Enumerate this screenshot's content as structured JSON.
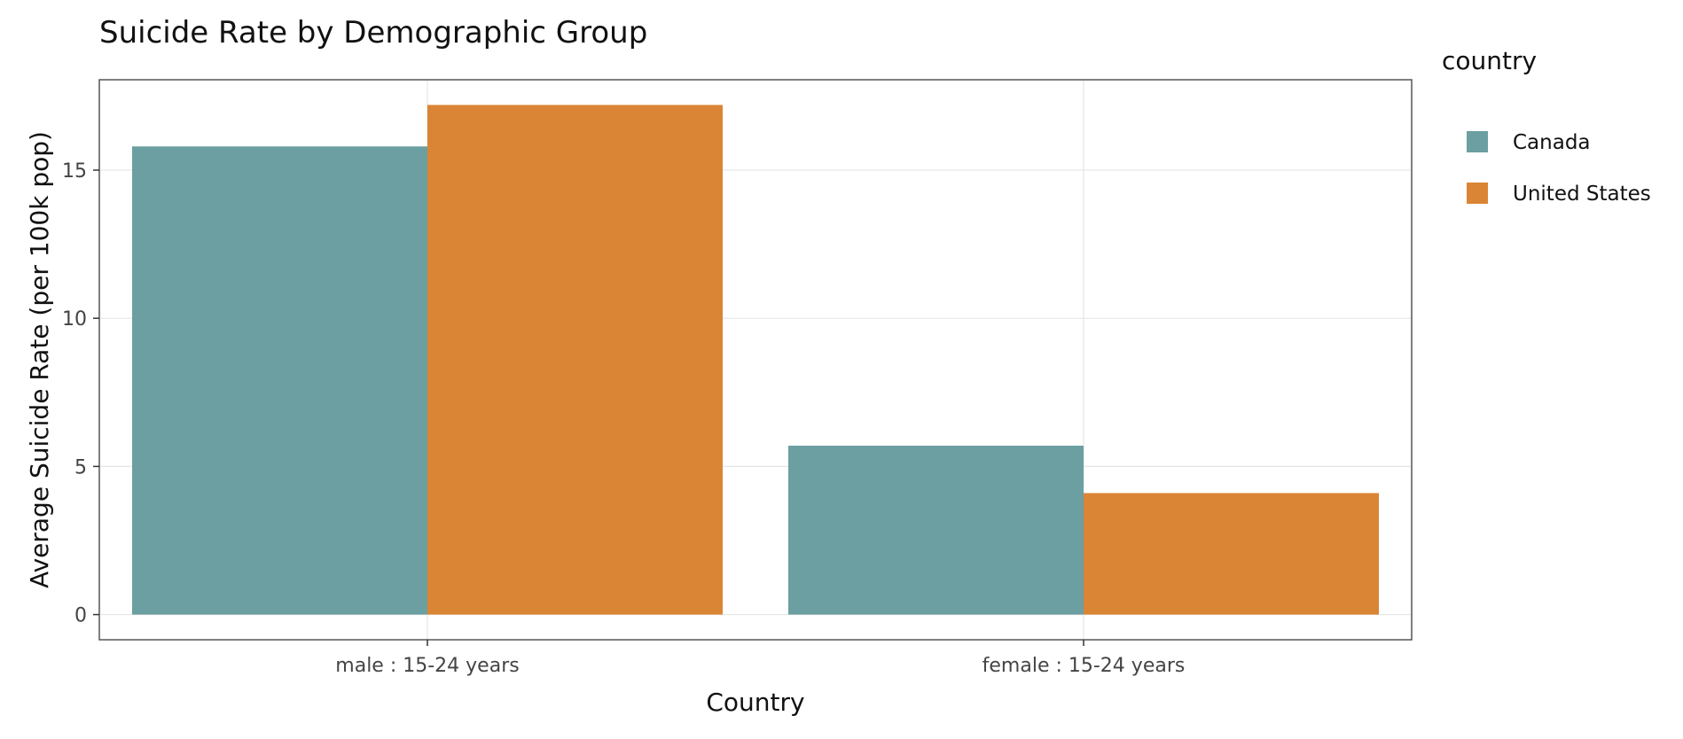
{
  "chart_data": {
    "type": "bar",
    "title": "Suicide Rate by Demographic Group",
    "xlabel": "Country",
    "ylabel": "Average Suicide Rate (per 100k pop)",
    "categories": [
      "male : 15-24 years",
      "female : 15-24 years"
    ],
    "series": [
      {
        "name": "Canada",
        "values": [
          15.8,
          5.7
        ],
        "color": "#6b9fa1"
      },
      {
        "name": "United States",
        "values": [
          17.2,
          4.1
        ],
        "color": "#da8535"
      }
    ],
    "yticks": [
      0,
      5,
      10,
      15
    ],
    "ylim": [
      -0.85,
      18.05
    ],
    "grid": true,
    "legend": {
      "title": "country",
      "position": "right"
    }
  }
}
